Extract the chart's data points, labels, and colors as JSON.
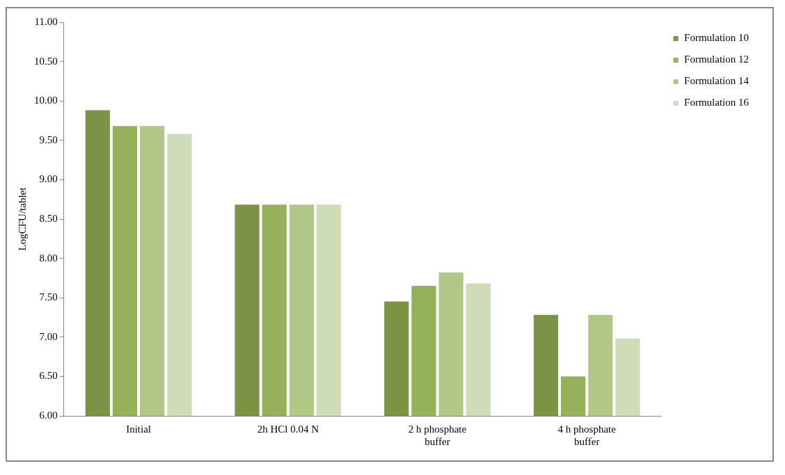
{
  "chart_data": {
    "type": "bar",
    "ylabel": "LogCFU/tablet",
    "categories": [
      "Initial",
      "2h HCl 0.04 N",
      "2 h phosphate buffer",
      "4 h phosphate buffer"
    ],
    "series": [
      {
        "name": "Formulation 10",
        "color": "#7b9344",
        "values": [
          9.9,
          8.7,
          7.47,
          7.3
        ]
      },
      {
        "name": "Formulation 12",
        "color": "#94b058",
        "values": [
          9.7,
          8.7,
          7.67,
          6.52
        ]
      },
      {
        "name": "Formulation 14",
        "color": "#b0c787",
        "values": [
          9.7,
          8.7,
          7.84,
          7.3
        ]
      },
      {
        "name": "Formulation 16",
        "color": "#cfdcb8",
        "values": [
          9.6,
          8.7,
          7.7,
          7.0
        ]
      }
    ],
    "ylim": [
      6,
      11
    ],
    "yticks": [
      {
        "value": 6,
        "label": "6.00"
      },
      {
        "value": 6.5,
        "label": "6.50"
      },
      {
        "value": 7,
        "label": "7.00"
      },
      {
        "value": 7.5,
        "label": "7.50"
      },
      {
        "value": 8,
        "label": "8.00"
      },
      {
        "value": 8.5,
        "label": "8.50"
      },
      {
        "value": 9,
        "label": "9.00"
      },
      {
        "value": 9.5,
        "label": "9.50"
      },
      {
        "value": 10,
        "label": "10.00"
      },
      {
        "value": 10.5,
        "label": "10.50"
      },
      {
        "value": 11,
        "label": "11.00"
      }
    ],
    "grid": false,
    "legend": "top right"
  }
}
